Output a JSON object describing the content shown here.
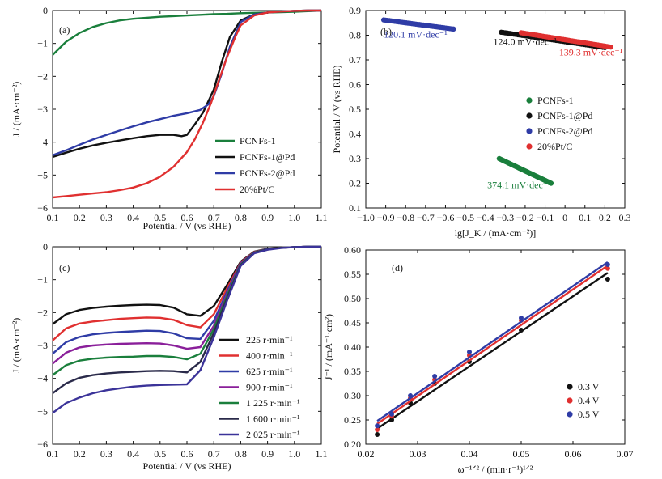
{
  "chart_data": [
    {
      "panel": "(a)",
      "type": "line",
      "xlabel": "Potential / V (vs RHE)",
      "ylabel": "J / (mA·cm⁻²)",
      "xlim": [
        0.1,
        1.1
      ],
      "ylim": [
        -6,
        0
      ],
      "xticks": [
        "0.1",
        "0.2",
        "0.3",
        "0.4",
        "0.5",
        "0.6",
        "0.7",
        "0.8",
        "0.9",
        "1.0",
        "1.1"
      ],
      "yticks": [
        "0",
        "−1",
        "−2",
        "−3",
        "−4",
        "−5",
        "−6"
      ],
      "legend_position": "bottom-right",
      "series": [
        {
          "name": "PCNFs-1",
          "color": "#1a7f3c",
          "x": [
            0.1,
            0.15,
            0.2,
            0.25,
            0.3,
            0.35,
            0.4,
            0.45,
            0.5,
            0.55,
            0.6,
            0.65,
            0.7,
            0.75,
            0.8,
            0.85,
            0.9,
            0.95,
            1.0,
            1.05,
            1.1
          ],
          "y": [
            -1.35,
            -0.95,
            -0.68,
            -0.5,
            -0.38,
            -0.3,
            -0.25,
            -0.22,
            -0.19,
            -0.17,
            -0.15,
            -0.13,
            -0.11,
            -0.1,
            -0.08,
            -0.07,
            -0.06,
            -0.05,
            -0.04,
            -0.02,
            0.0
          ]
        },
        {
          "name": "PCNFs-1@Pd",
          "color": "#111111",
          "x": [
            0.1,
            0.15,
            0.2,
            0.25,
            0.3,
            0.35,
            0.4,
            0.45,
            0.5,
            0.55,
            0.58,
            0.6,
            0.63,
            0.66,
            0.7,
            0.73,
            0.76,
            0.8,
            0.85,
            0.9,
            0.95,
            1.0,
            1.05,
            1.1
          ],
          "y": [
            -4.45,
            -4.32,
            -4.2,
            -4.1,
            -4.02,
            -3.95,
            -3.88,
            -3.82,
            -3.78,
            -3.78,
            -3.82,
            -3.78,
            -3.45,
            -3.1,
            -2.4,
            -1.55,
            -0.8,
            -0.3,
            -0.12,
            -0.06,
            -0.03,
            -0.01,
            0.0,
            0.0
          ]
        },
        {
          "name": "PCNFs-2@Pd",
          "color": "#2f3ca6",
          "x": [
            0.1,
            0.15,
            0.2,
            0.25,
            0.3,
            0.35,
            0.4,
            0.45,
            0.5,
            0.55,
            0.6,
            0.65,
            0.68,
            0.7,
            0.73,
            0.76,
            0.8,
            0.85,
            0.9,
            0.95,
            1.0,
            1.05,
            1.1
          ],
          "y": [
            -4.4,
            -4.25,
            -4.08,
            -3.92,
            -3.78,
            -3.65,
            -3.52,
            -3.4,
            -3.3,
            -3.2,
            -3.12,
            -3.02,
            -2.85,
            -2.6,
            -1.9,
            -1.1,
            -0.35,
            -0.12,
            -0.06,
            -0.03,
            -0.01,
            0.0,
            0.0
          ]
        },
        {
          "name": "20%Pt/C",
          "color": "#e03030",
          "x": [
            0.1,
            0.15,
            0.2,
            0.25,
            0.3,
            0.35,
            0.4,
            0.45,
            0.5,
            0.55,
            0.6,
            0.63,
            0.66,
            0.69,
            0.72,
            0.75,
            0.78,
            0.8,
            0.85,
            0.9,
            0.95,
            1.0,
            1.05,
            1.1
          ],
          "y": [
            -5.68,
            -5.64,
            -5.6,
            -5.56,
            -5.52,
            -5.46,
            -5.38,
            -5.25,
            -5.05,
            -4.75,
            -4.3,
            -3.9,
            -3.4,
            -2.8,
            -2.1,
            -1.4,
            -0.8,
            -0.45,
            -0.15,
            -0.06,
            -0.03,
            -0.01,
            0.0,
            0.0
          ]
        }
      ]
    },
    {
      "panel": "(b)",
      "type": "scatter",
      "xlabel": "lg[J_K / (mA·cm⁻²)]",
      "ylabel": "Potential / V (vs RHE)",
      "xlim": [
        -1.0,
        0.3
      ],
      "ylim": [
        0.1,
        0.9
      ],
      "xticks": [
        "−1.0",
        "−0.9",
        "−0.8",
        "−0.7",
        "−0.6",
        "−0.5",
        "−0.4",
        "−0.3",
        "−0.2",
        "−0.1",
        "0",
        "0.1",
        "0.2",
        "0.3"
      ],
      "yticks": [
        "0.1",
        "0.2",
        "0.3",
        "0.4",
        "0.5",
        "0.6",
        "0.7",
        "0.8",
        "0.9"
      ],
      "legend_position": "center-right",
      "series": [
        {
          "name": "PCNFs-1",
          "color": "#1a7f3c",
          "x0": -0.33,
          "y0": 0.3,
          "x1": -0.07,
          "y1": 0.2,
          "n": 48
        },
        {
          "name": "PCNFs-1@Pd",
          "color": "#111111",
          "x0": -0.32,
          "y0": 0.812,
          "x1": 0.2,
          "y1": 0.75,
          "n": 50
        },
        {
          "name": "PCNFs-2@Pd",
          "color": "#2f3ca6",
          "x0": -0.91,
          "y0": 0.862,
          "x1": -0.56,
          "y1": 0.825,
          "n": 38
        },
        {
          "name": "20%Pt/C",
          "color": "#e03030",
          "x0": -0.22,
          "y0": 0.81,
          "x1": 0.23,
          "y1": 0.752,
          "n": 50
        }
      ],
      "annotations": [
        {
          "text": "120.1 mV·dec⁻¹",
          "color": "#2f3ca6",
          "x": -0.91,
          "y": 0.79
        },
        {
          "text": "124.0 mV·dec⁻¹",
          "color": "#111111",
          "x": -0.36,
          "y": 0.76
        },
        {
          "text": "139.3 mV·dec⁻¹",
          "color": "#e03030",
          "x": -0.03,
          "y": 0.718
        },
        {
          "text": "374.1 mV·dec⁻¹",
          "color": "#1a7f3c",
          "x": -0.39,
          "y": 0.18
        }
      ]
    },
    {
      "panel": "(c)",
      "type": "line",
      "xlabel": "Potential / V (vs RHE)",
      "ylabel": "J / (mA·cm⁻²)",
      "xlim": [
        0.1,
        1.1
      ],
      "ylim": [
        -6,
        0
      ],
      "xticks": [
        "0.1",
        "0.2",
        "0.3",
        "0.4",
        "0.5",
        "0.6",
        "0.7",
        "0.8",
        "0.9",
        "1.0",
        "1.1"
      ],
      "yticks": [
        "0",
        "−1",
        "−2",
        "−3",
        "−4",
        "−5",
        "−6"
      ],
      "legend_position": "right",
      "x": [
        0.1,
        0.15,
        0.2,
        0.25,
        0.3,
        0.35,
        0.4,
        0.45,
        0.5,
        0.55,
        0.6,
        0.65,
        0.7,
        0.75,
        0.8,
        0.85,
        0.9,
        0.95,
        1.0,
        1.05,
        1.1
      ],
      "series": [
        {
          "name": "225 r·min⁻¹",
          "color": "#111111",
          "y": [
            -2.35,
            -2.05,
            -1.92,
            -1.86,
            -1.82,
            -1.79,
            -1.77,
            -1.76,
            -1.77,
            -1.85,
            -2.05,
            -2.1,
            -1.8,
            -1.15,
            -0.45,
            -0.15,
            -0.06,
            -0.03,
            -0.01,
            0.0,
            0.0
          ]
        },
        {
          "name": "400 r·min⁻¹",
          "color": "#e03030",
          "y": [
            -2.85,
            -2.48,
            -2.33,
            -2.27,
            -2.23,
            -2.19,
            -2.17,
            -2.15,
            -2.16,
            -2.22,
            -2.38,
            -2.45,
            -2.05,
            -1.25,
            -0.48,
            -0.16,
            -0.07,
            -0.03,
            -0.01,
            0.0,
            0.0
          ]
        },
        {
          "name": "625 r·min⁻¹",
          "color": "#2f3ca6",
          "y": [
            -3.25,
            -2.9,
            -2.74,
            -2.66,
            -2.62,
            -2.59,
            -2.57,
            -2.55,
            -2.56,
            -2.63,
            -2.78,
            -2.8,
            -2.25,
            -1.35,
            -0.5,
            -0.17,
            -0.07,
            -0.03,
            -0.01,
            0.0,
            0.0
          ]
        },
        {
          "name": "900 r·min⁻¹",
          "color": "#8a1f9a",
          "y": [
            -3.55,
            -3.22,
            -3.06,
            -3.0,
            -2.97,
            -2.95,
            -2.94,
            -2.93,
            -2.94,
            -3.0,
            -3.1,
            -3.05,
            -2.4,
            -1.42,
            -0.52,
            -0.18,
            -0.08,
            -0.03,
            -0.01,
            0.0,
            0.0
          ]
        },
        {
          "name": "1 225 r·min⁻¹",
          "color": "#1a7f3c",
          "y": [
            -3.9,
            -3.6,
            -3.46,
            -3.4,
            -3.37,
            -3.35,
            -3.34,
            -3.32,
            -3.32,
            -3.35,
            -3.42,
            -3.25,
            -2.5,
            -1.48,
            -0.54,
            -0.18,
            -0.08,
            -0.03,
            -0.01,
            0.0,
            0.0
          ]
        },
        {
          "name": "1 600 r·min⁻¹",
          "color": "#2a2a4a",
          "y": [
            -4.45,
            -4.15,
            -3.98,
            -3.9,
            -3.85,
            -3.82,
            -3.8,
            -3.78,
            -3.77,
            -3.78,
            -3.82,
            -3.5,
            -2.62,
            -1.55,
            -0.56,
            -0.19,
            -0.08,
            -0.03,
            -0.01,
            0.0,
            0.0
          ]
        },
        {
          "name": "2 025 r·min⁻¹",
          "color": "#3b3399",
          "y": [
            -5.05,
            -4.75,
            -4.58,
            -4.45,
            -4.36,
            -4.3,
            -4.25,
            -4.22,
            -4.2,
            -4.19,
            -4.18,
            -3.75,
            -2.75,
            -1.62,
            -0.58,
            -0.2,
            -0.09,
            -0.04,
            -0.01,
            0.0,
            0.0
          ]
        }
      ]
    },
    {
      "panel": "(d)",
      "type": "scatter",
      "xlabel": "ω⁻¹ᐟ² / (min·r⁻¹)¹ᐟ²",
      "ylabel": "J⁻¹ / (mA⁻¹·cm²)",
      "xlim": [
        0.02,
        0.07
      ],
      "ylim": [
        0.2,
        0.6
      ],
      "xticks": [
        "0.02",
        "0.03",
        "0.04",
        "0.05",
        "0.06",
        "0.07"
      ],
      "yticks": [
        "0.20",
        "0.25",
        "0.30",
        "0.35",
        "0.40",
        "0.45",
        "0.50",
        "0.55",
        "0.60"
      ],
      "legend_position": "bottom-right",
      "x": [
        0.0222,
        0.025,
        0.0286,
        0.0333,
        0.04,
        0.05,
        0.0667
      ],
      "series": [
        {
          "name": "0.3 V",
          "color": "#111111",
          "y": [
            0.22,
            0.25,
            0.285,
            0.325,
            0.37,
            0.435,
            0.54
          ],
          "fit": [
            0.0222,
            0.232,
            0.0667,
            0.553
          ]
        },
        {
          "name": "0.4 V",
          "color": "#e03030",
          "y": [
            0.23,
            0.258,
            0.295,
            0.333,
            0.383,
            0.455,
            0.562
          ],
          "fit": [
            0.0222,
            0.242,
            0.0667,
            0.568
          ]
        },
        {
          "name": "0.5 V",
          "color": "#2f3ca6",
          "y": [
            0.238,
            0.262,
            0.3,
            0.34,
            0.39,
            0.46,
            0.57
          ],
          "fit": [
            0.0222,
            0.248,
            0.0667,
            0.575
          ]
        }
      ]
    }
  ]
}
